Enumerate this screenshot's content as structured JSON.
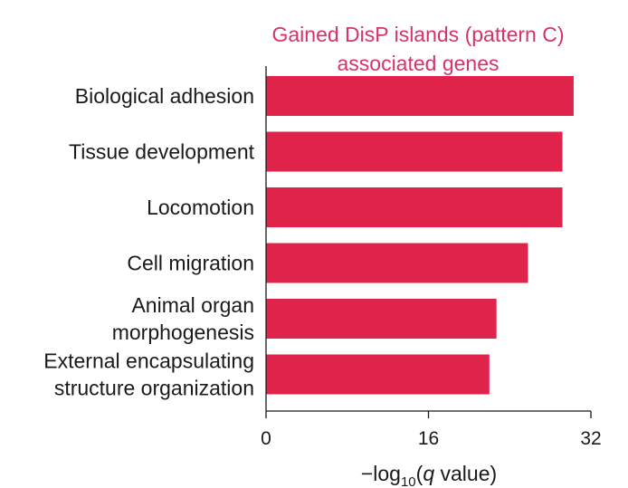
{
  "chart_data": {
    "type": "bar",
    "orientation": "horizontal",
    "title_lines": [
      "Gained DisP islands (pattern C)",
      "associated genes"
    ],
    "categories": [
      {
        "lines": [
          "Biological adhesion"
        ],
        "value": 30.3
      },
      {
        "lines": [
          "Tissue development"
        ],
        "value": 29.2
      },
      {
        "lines": [
          "Locomotion"
        ],
        "value": 29.2
      },
      {
        "lines": [
          "Cell migration"
        ],
        "value": 25.8
      },
      {
        "lines": [
          "Animal organ",
          "morphogenesis"
        ],
        "value": 22.7
      },
      {
        "lines": [
          "External encapsulating",
          "structure organization"
        ],
        "value": 22.0
      }
    ],
    "xticks": [
      0,
      16,
      32
    ],
    "xlim": [
      0,
      32
    ],
    "xlabel": {
      "prefix": "−log",
      "sub": "10",
      "open": "(",
      "italic": "q",
      "rest": " value)"
    },
    "bar_color": "#e0234a",
    "title_color": "#d6336c",
    "grid": false
  }
}
